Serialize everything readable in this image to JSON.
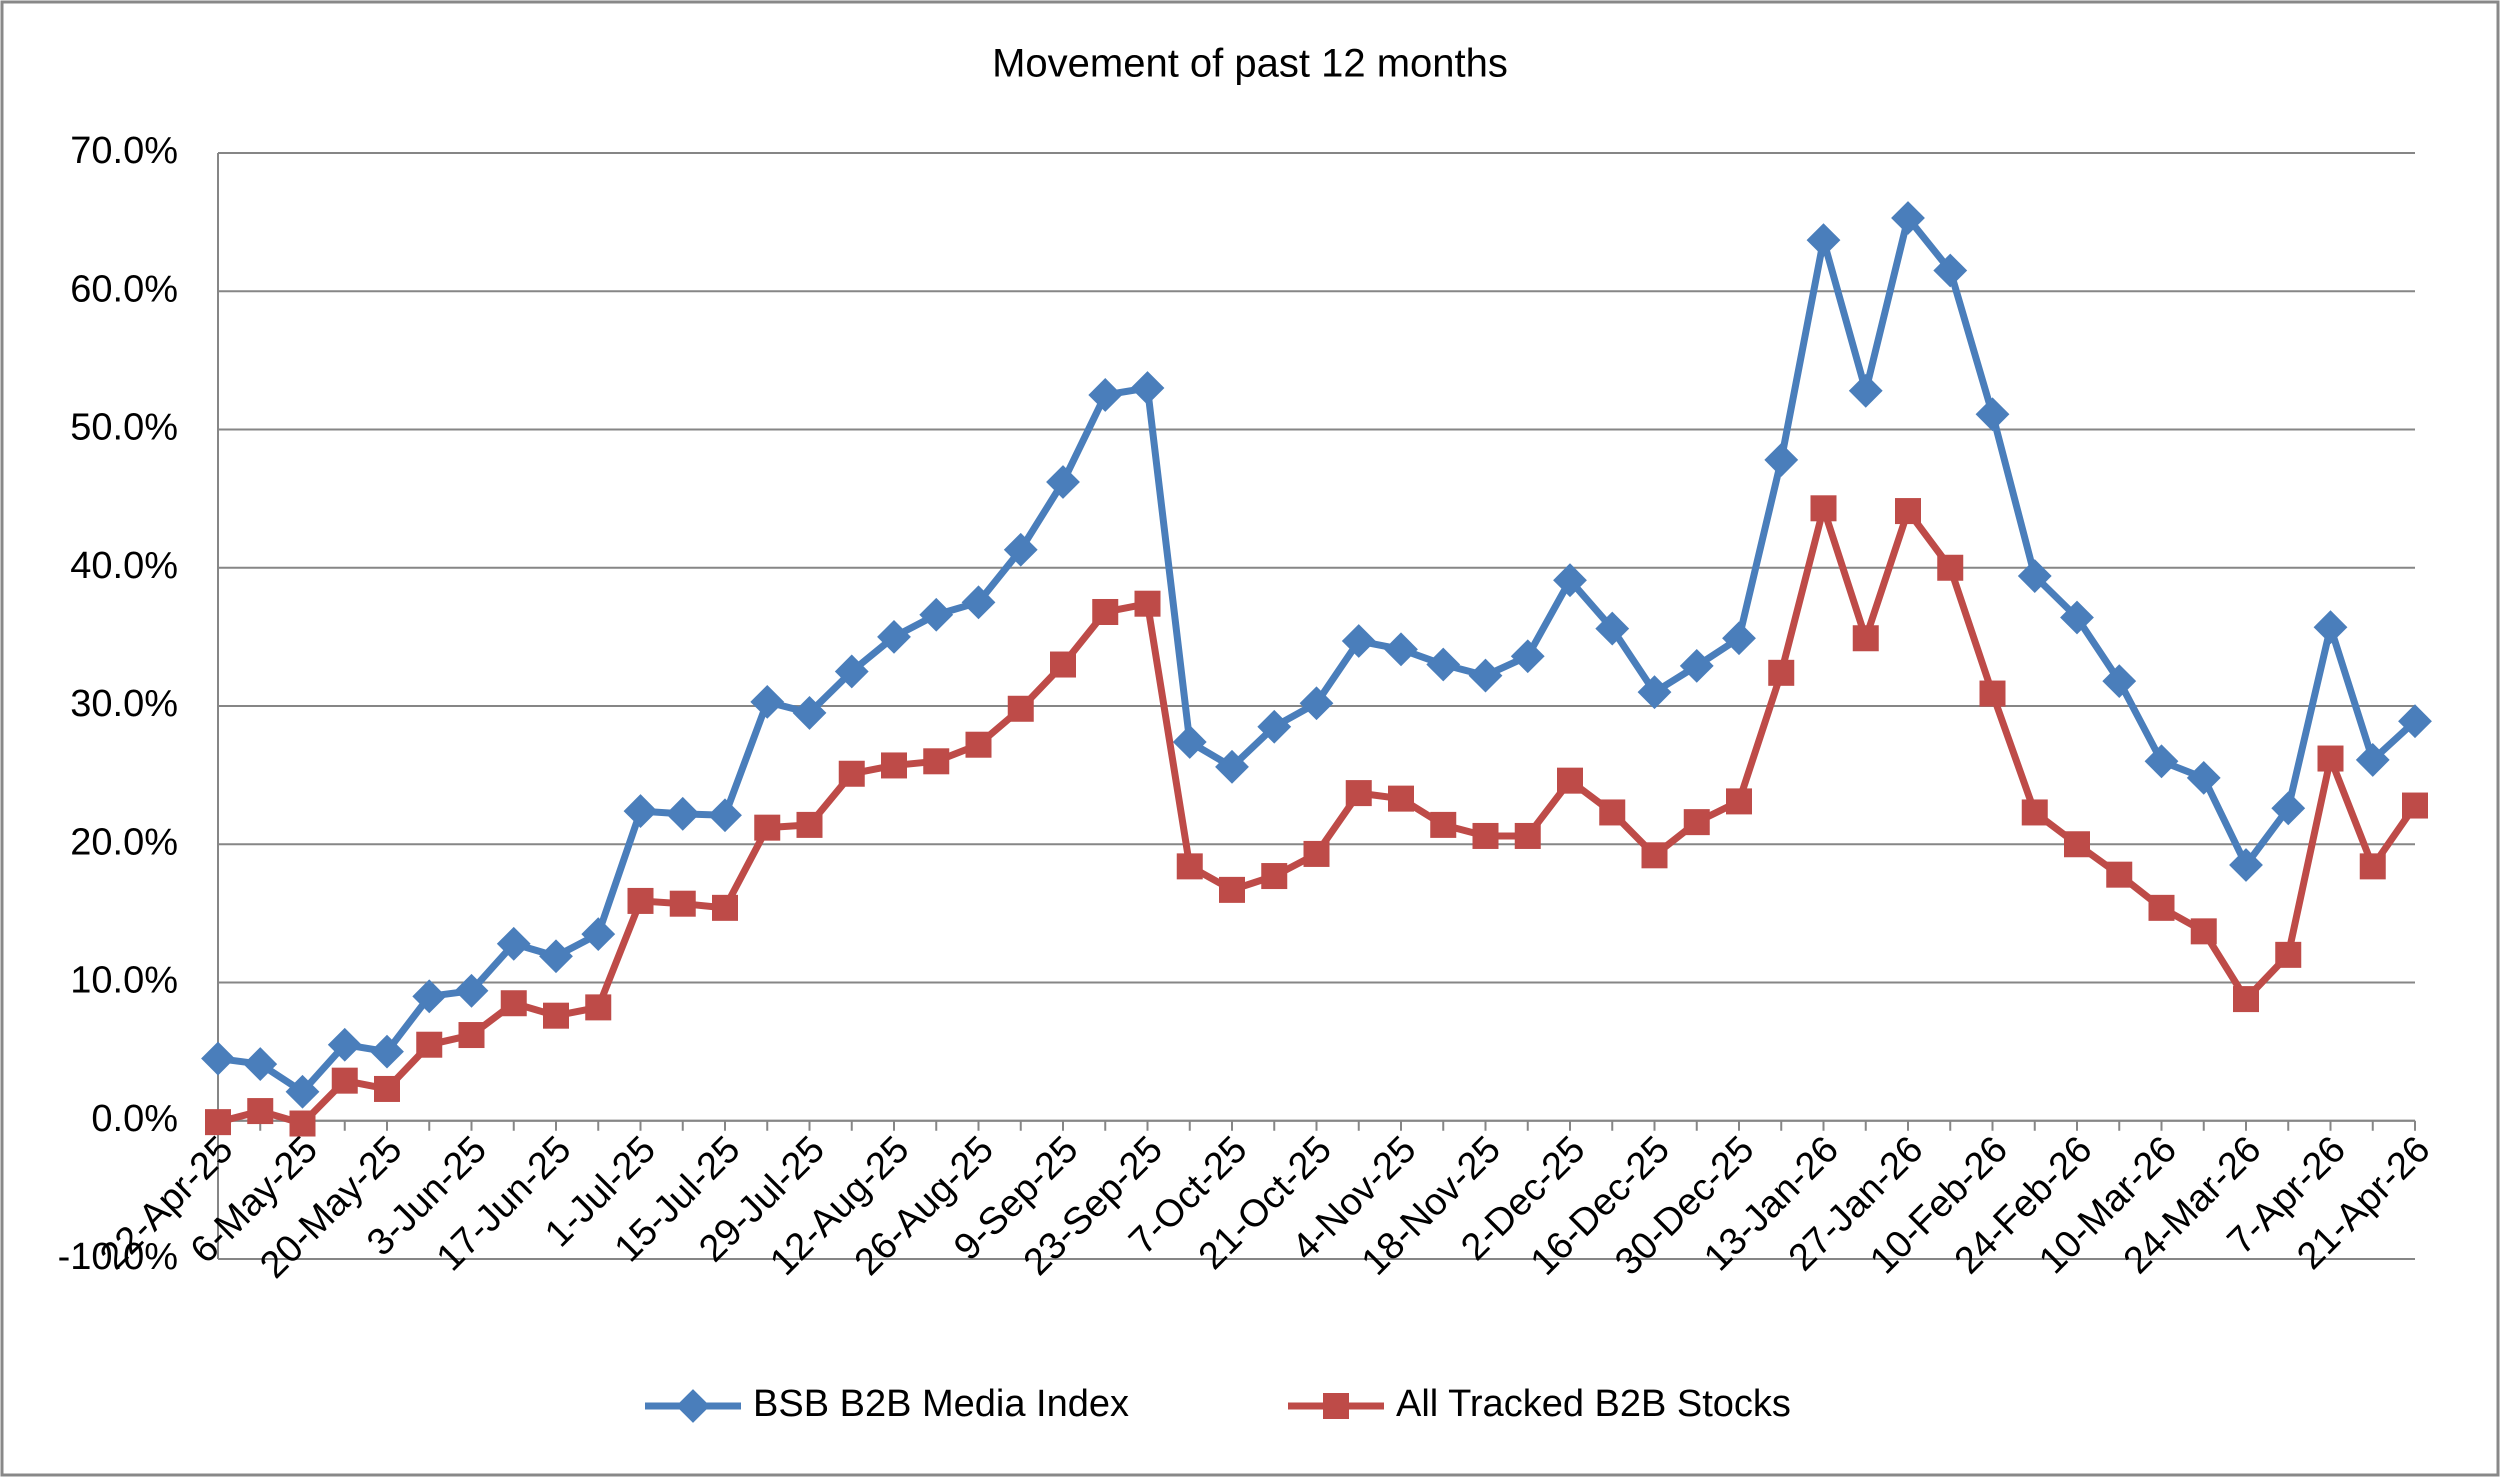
{
  "chart_data": {
    "type": "line",
    "title": "Movement of past 12 months",
    "categories": [
      "22-Apr-25",
      null,
      "6-May-25",
      null,
      "20-May-25",
      null,
      "3-Jun-25",
      null,
      "17-Jun-25",
      null,
      "1-Jul-25",
      null,
      "15-Jul-25",
      null,
      "29-Jul-25",
      null,
      "12-Aug-25",
      null,
      "26-Aug-25",
      null,
      "9-Sep-25",
      null,
      "23-Sep-25",
      null,
      "7-Oct-25",
      null,
      "21-Oct-25",
      null,
      "4-Nov-25",
      null,
      "18-Nov-25",
      null,
      "2-Dec-25",
      null,
      "16-Dec-25",
      null,
      "30-Dec-25",
      null,
      "13-Jan-26",
      null,
      "27-Jan-26",
      null,
      "10-Feb-26",
      null,
      "24-Feb-26",
      null,
      "10-Mar-26",
      null,
      "24-Mar-26",
      null,
      "7-Apr-26",
      null,
      "21-Apr-26"
    ],
    "series": [
      {
        "name": "BSB B2B Media Index",
        "color": "#4a7ebb",
        "marker": "diamond",
        "values": [
          4.5,
          4.1,
          2.1,
          5.5,
          5.0,
          9.0,
          9.4,
          12.8,
          11.9,
          13.5,
          22.4,
          22.2,
          22.1,
          30.3,
          29.5,
          32.5,
          35.0,
          36.6,
          37.5,
          41.3,
          46.2,
          52.5,
          53.0,
          27.4,
          25.6,
          28.5,
          30.2,
          34.7,
          34.1,
          33.0,
          32.2,
          33.6,
          39.1,
          35.6,
          31.0,
          32.9,
          34.9,
          47.8,
          63.7,
          52.8,
          65.3,
          61.5,
          51.1,
          39.4,
          36.4,
          31.8,
          26.0,
          24.8,
          18.5,
          22.6,
          35.7,
          26.1,
          28.9
        ]
      },
      {
        "name": "All Tracked B2B Stocks",
        "color": "#be4b48",
        "marker": "square",
        "values": [
          -0.1,
          0.7,
          -0.2,
          2.9,
          2.3,
          5.5,
          6.2,
          8.5,
          7.6,
          8.2,
          15.9,
          15.7,
          15.4,
          21.2,
          21.4,
          25.1,
          25.7,
          26.0,
          27.2,
          29.8,
          33.0,
          36.8,
          37.4,
          18.4,
          16.7,
          17.7,
          19.3,
          23.7,
          23.3,
          21.4,
          20.6,
          20.6,
          24.6,
          22.3,
          19.2,
          21.6,
          23.1,
          32.4,
          44.3,
          34.9,
          44.1,
          40.0,
          30.9,
          22.3,
          20.0,
          17.8,
          15.4,
          13.7,
          8.8,
          12.0,
          26.2,
          18.4,
          22.8
        ]
      }
    ],
    "ylim": [
      -10,
      70
    ],
    "yticks": [
      {
        "value": -10,
        "label": "-10.0%"
      },
      {
        "value": 0,
        "label": "0.0%"
      },
      {
        "value": 10,
        "label": "10.0%"
      },
      {
        "value": 20,
        "label": "20.0%"
      },
      {
        "value": 30,
        "label": "30.0%"
      },
      {
        "value": 40,
        "label": "40.0%"
      },
      {
        "value": 50,
        "label": "50.0%"
      },
      {
        "value": 60,
        "label": "60.0%"
      },
      {
        "value": 70,
        "label": "70.0%"
      }
    ],
    "grid": true,
    "legend": "bottom"
  }
}
